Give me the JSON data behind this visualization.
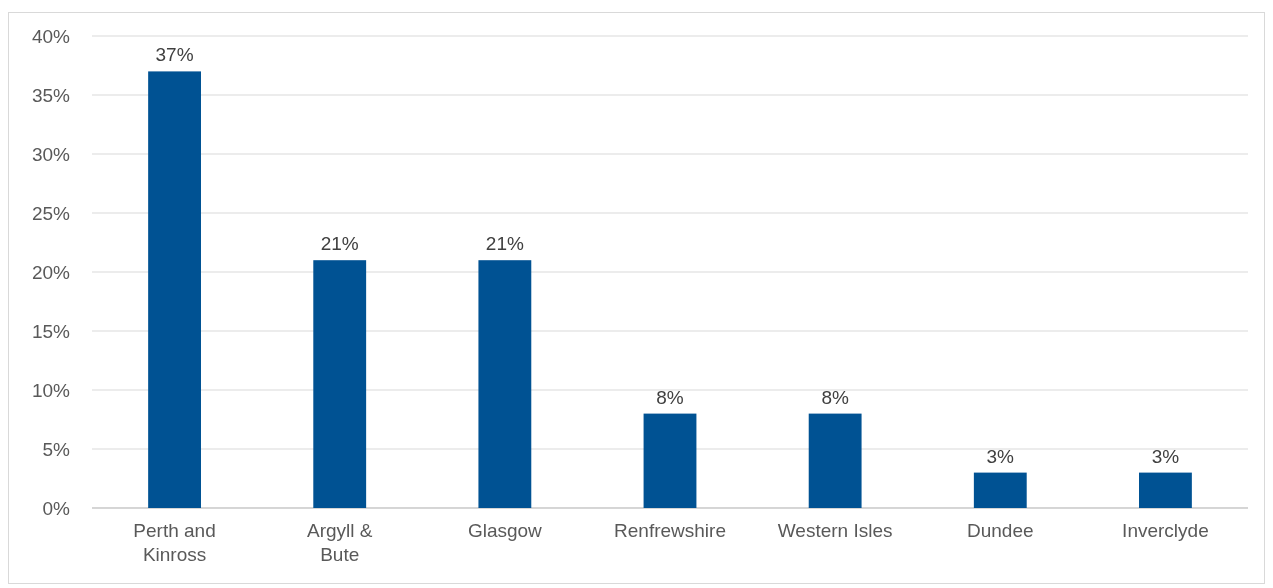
{
  "chart_data": {
    "type": "bar",
    "categories": [
      "Perth and Kinross",
      "Argyll & Bute",
      "Glasgow",
      "Renfrewshire",
      "Western Isles",
      "Dundee",
      "Inverclyde"
    ],
    "values": [
      37,
      21,
      21,
      8,
      8,
      3,
      3
    ],
    "value_labels": [
      "37%",
      "21%",
      "21%",
      "8%",
      "8%",
      "3%",
      "3%"
    ],
    "color": "#005293",
    "ylim": [
      0,
      40
    ],
    "yticks": [
      {
        "value": 0,
        "label": "0%"
      },
      {
        "value": 5,
        "label": "5%"
      },
      {
        "value": 10,
        "label": "10%"
      },
      {
        "value": 15,
        "label": "15%"
      },
      {
        "value": 20,
        "label": "20%"
      },
      {
        "value": 25,
        "label": "25%"
      },
      {
        "value": 30,
        "label": "30%"
      },
      {
        "value": 35,
        "label": "35%"
      },
      {
        "value": 40,
        "label": "40%"
      }
    ],
    "grid": "y"
  }
}
